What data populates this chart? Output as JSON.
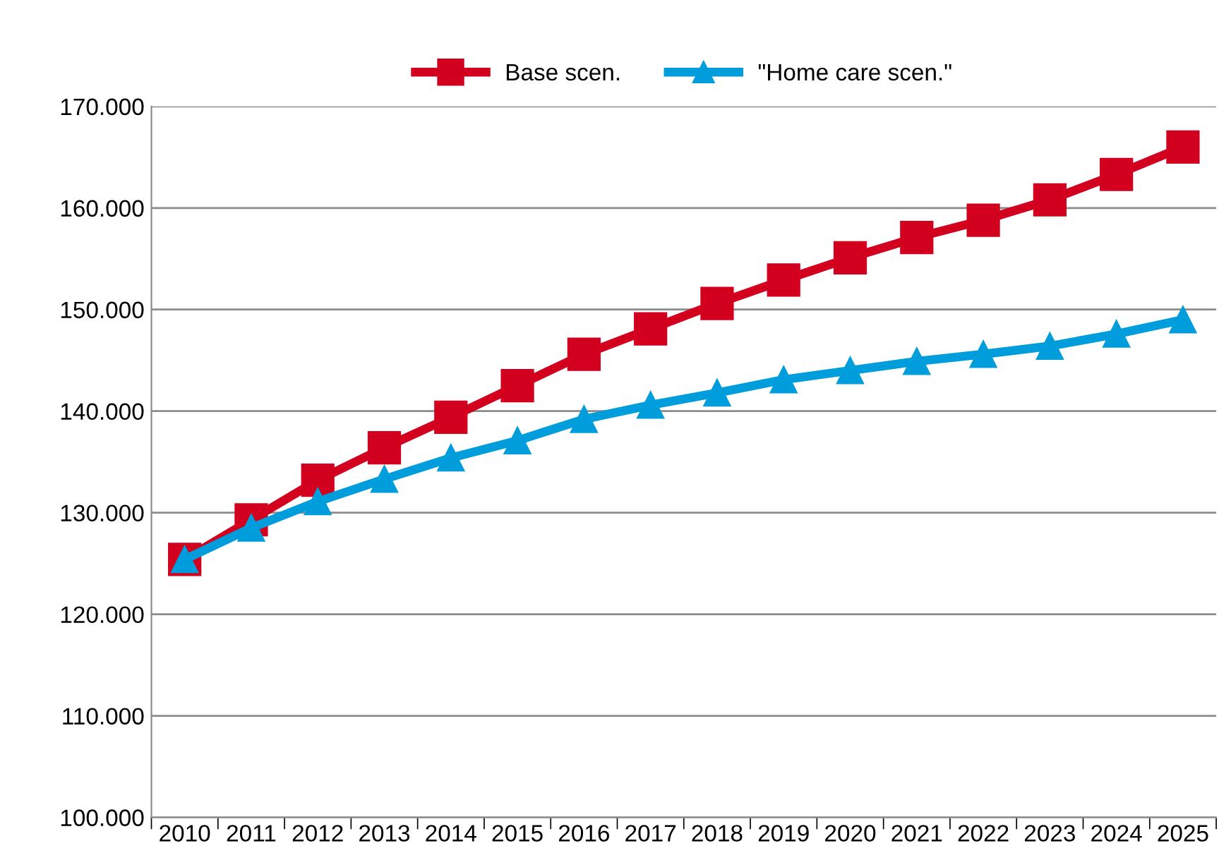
{
  "chart_data": {
    "type": "line",
    "categories": [
      "2010",
      "2011",
      "2012",
      "2013",
      "2014",
      "2015",
      "2016",
      "2017",
      "2018",
      "2019",
      "2020",
      "2021",
      "2022",
      "2023",
      "2024",
      "2025"
    ],
    "series": [
      {
        "name": "Base scen.",
        "color": "#d2001e",
        "marker": "square",
        "values": [
          125400,
          129300,
          133200,
          136400,
          139400,
          142500,
          145600,
          148100,
          150600,
          152900,
          155100,
          157100,
          158800,
          160800,
          163300,
          166000
        ]
      },
      {
        "name": "\"Home care scen.\"",
        "color": "#009ddc",
        "marker": "triangle",
        "values": [
          125400,
          128500,
          131100,
          133300,
          135400,
          137100,
          139200,
          140600,
          141800,
          143100,
          144000,
          144900,
          145600,
          146400,
          147600,
          149000
        ]
      }
    ],
    "ylim": [
      100000,
      170000
    ],
    "yticks": [
      {
        "value": 100000,
        "label": "100.000"
      },
      {
        "value": 110000,
        "label": "110.000"
      },
      {
        "value": 120000,
        "label": "120.000"
      },
      {
        "value": 130000,
        "label": "130.000"
      },
      {
        "value": 140000,
        "label": "140.000"
      },
      {
        "value": 150000,
        "label": "150.000"
      },
      {
        "value": 160000,
        "label": "160.000"
      },
      {
        "value": 170000,
        "label": "170.000"
      }
    ],
    "grid": "y",
    "legend": "top",
    "line_style": "solid"
  }
}
